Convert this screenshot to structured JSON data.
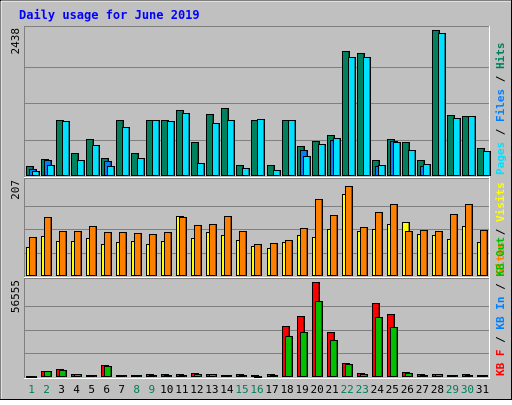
{
  "chart_data": {
    "type": "bar",
    "title": "Daily usage for June 2019",
    "categories": [
      "1",
      "2",
      "3",
      "4",
      "5",
      "6",
      "7",
      "8",
      "9",
      "10",
      "11",
      "12",
      "13",
      "14",
      "15",
      "16",
      "17",
      "18",
      "19",
      "20",
      "21",
      "22",
      "23",
      "24",
      "25",
      "26",
      "27",
      "28",
      "29",
      "30",
      "31"
    ],
    "weekend_days": [
      1,
      2,
      8,
      9,
      15,
      16,
      22,
      23,
      29,
      30
    ],
    "panels": [
      {
        "id": "hits-files-pages",
        "ymax_label": "2438",
        "ylim": [
          0,
          2438
        ],
        "legend": [
          {
            "text": "Pages",
            "color": "#00e0ff"
          },
          {
            "text": " / ",
            "color": "#000000"
          },
          {
            "text": "Files",
            "color": "#0080ff"
          },
          {
            "text": " / ",
            "color": "#000000"
          },
          {
            "text": "Hits",
            "color": "#00805c"
          }
        ],
        "series": [
          {
            "name": "Hits",
            "color": "#00805c",
            "values": [
              170,
              290,
              930,
              390,
              620,
              300,
              940,
              390,
              940,
              930,
              1100,
              560,
              1040,
              1130,
              190,
              930,
              190,
              940,
              500,
              590,
              680,
              2080,
              2050,
              270,
              620,
              570,
              270,
              2438,
              1020,
              1000,
              470
            ]
          },
          {
            "name": "Files",
            "color": "#0080ff",
            "values": [
              110,
              260,
              0,
              0,
              0,
              250,
              0,
              0,
              0,
              0,
              0,
              0,
              0,
              0,
              0,
              0,
              0,
              0,
              440,
              0,
              600,
              0,
              0,
              170,
              580,
              0,
              170,
              0,
              0,
              0,
              0
            ]
          },
          {
            "name": "Pages",
            "color": "#00e0ff",
            "values": [
              90,
              190,
              920,
              260,
              510,
              170,
              810,
              300,
              930,
              920,
              1050,
              210,
              880,
              930,
              140,
              950,
              100,
              930,
              330,
              530,
              640,
              1980,
              1980,
              190,
              560,
              430,
              200,
              2390,
              970,
              1000,
              420
            ]
          }
        ]
      },
      {
        "id": "visits-sites",
        "ymax_label": "207",
        "ylim": [
          0,
          207
        ],
        "legend": [
          {
            "text": "Sites",
            "color": "#ff8000"
          },
          {
            "text": " / ",
            "color": "#000000"
          },
          {
            "text": "Visits",
            "color": "#ffff00"
          }
        ],
        "series": [
          {
            "name": "Visits",
            "color": "#ffff00",
            "values": [
              64,
              88,
              77,
              76,
              83,
              70,
              75,
              77,
              71,
              78,
              132,
              84,
              96,
              91,
              79,
              67,
              62,
              74,
              90,
              86,
              103,
              181,
              98,
              104,
              114,
              118,
              92,
              90,
              82,
              110,
              74
            ]
          },
          {
            "name": "Sites",
            "color": "#ff8000",
            "values": [
              85,
              130,
              98,
              98,
              110,
              96,
              96,
              95,
              92,
              97,
              130,
              113,
              115,
              132,
              99,
              71,
              72,
              80,
              105,
              170,
              134,
              199,
              109,
              142,
              158,
              100,
              101,
              100,
              137,
              158,
              102
            ]
          }
        ]
      },
      {
        "id": "kbytes",
        "ymax_label": "56555",
        "ylim": [
          0,
          56555
        ],
        "legend": [
          {
            "text": "KB F",
            "color": "#ff0000"
          },
          {
            "text": " / ",
            "color": "#000000"
          },
          {
            "text": "KB In",
            "color": "#0080ff"
          },
          {
            "text": " / ",
            "color": "#000000"
          },
          {
            "text": "KB Out",
            "color": "#00c000"
          }
        ],
        "series": [
          {
            "name": "KB F",
            "color": "#ff0000",
            "values": [
              600,
              3500,
              4500,
              1800,
              1400,
              7000,
              1300,
              1400,
              1500,
              1600,
              1600,
              2100,
              1700,
              1200,
              1600,
              900,
              1500,
              30600,
              36100,
              56555,
              27000,
              8300,
              2100,
              44300,
              37300,
              2800,
              1600,
              2000,
              1300,
              1500,
              1400
            ]
          },
          {
            "name": "KB Out",
            "color": "#00c000",
            "values": [
              500,
              3400,
              4100,
              1600,
              1200,
              6800,
              1100,
              1300,
              1300,
              1400,
              1400,
              1800,
              1500,
              1000,
              1400,
              800,
              1200,
              24200,
              26800,
              45400,
              22000,
              8000,
              1800,
              35600,
              29700,
              2500,
              1400,
              1800,
              1100,
              1300,
              1200
            ]
          }
        ]
      }
    ]
  }
}
